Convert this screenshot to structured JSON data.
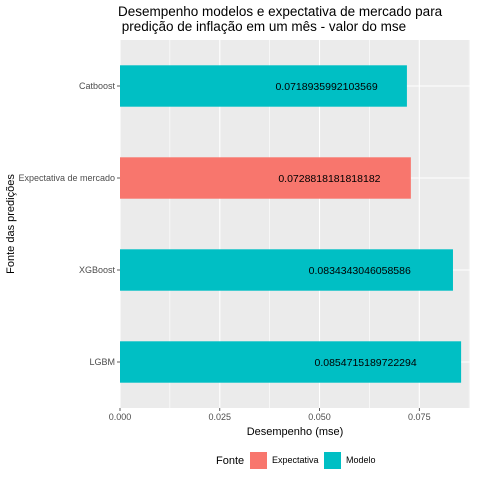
{
  "chart_data": {
    "type": "bar",
    "orientation": "horizontal",
    "title": "Desempenho modelos e expectativa de mercado para\n predição de inflação em um mês - valor do mse",
    "xlabel": "Desempenho (mse)",
    "ylabel": "Fonte das predições",
    "xlim": [
      0,
      0.0877
    ],
    "xticks": [
      0.0,
      0.025,
      0.05,
      0.075
    ],
    "xtick_labels": [
      "0.000",
      "0.025",
      "0.050",
      "0.075"
    ],
    "categories": [
      "Catboost",
      "Expectativa de mercado",
      "XGBoost",
      "LGBM"
    ],
    "values": [
      0.0718935992103569,
      0.0728818181818182,
      0.0834343046058586,
      0.0854715189722294
    ],
    "value_labels": [
      "0.0718935992103569",
      "0.0728818181818182",
      "0.0834343046058586",
      "0.0854715189722294"
    ],
    "groups": [
      "Modelo",
      "Expectativa",
      "Modelo",
      "Modelo"
    ],
    "legend": {
      "title": "Fonte",
      "position": "bottom",
      "entries": [
        {
          "label": "Expectativa",
          "color": "#F8766D"
        },
        {
          "label": "Modelo",
          "color": "#00BFC4"
        }
      ]
    },
    "colors": {
      "Expectativa": "#F8766D",
      "Modelo": "#00BFC4",
      "panel": "#EBEBEB",
      "grid": "#FFFFFF"
    },
    "grid": true
  }
}
